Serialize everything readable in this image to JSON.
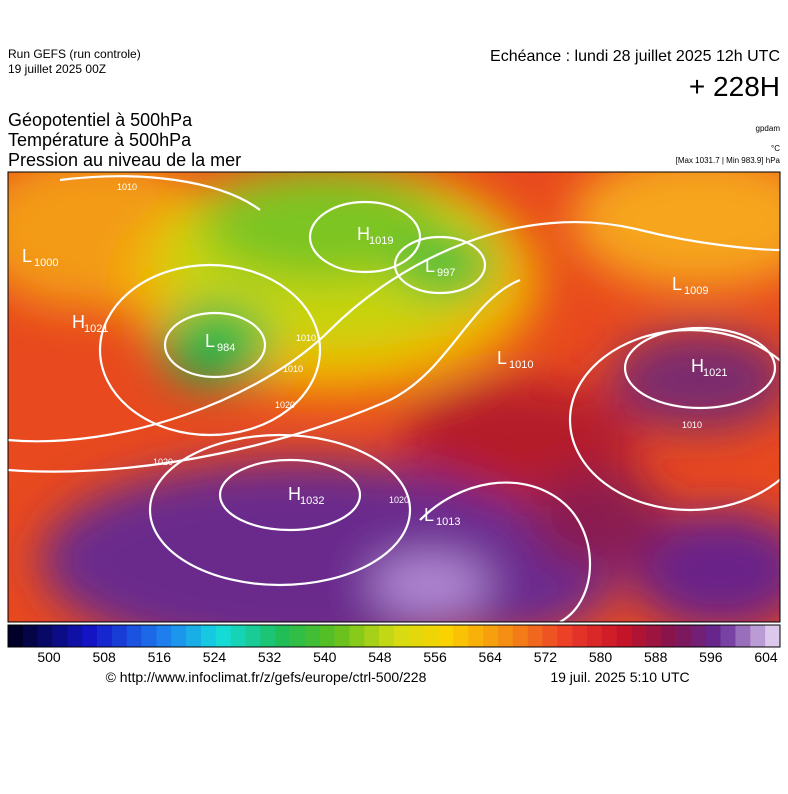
{
  "header": {
    "run": "Run GEFS (run controle)",
    "run_date": "19 juillet 2025 00Z",
    "valid": "Echéance : lundi 28 juillet 2025 12h UTC",
    "lead": "+ 228H",
    "titles": [
      "Géopotentiel à 500hPa",
      "Température à 500hPa",
      "Pression au niveau de la mer"
    ],
    "units_geopotential": "gpdam",
    "units_temperature": "°C",
    "extremes": "[Max 1031.7 | Min 983.9] hPa"
  },
  "map": {
    "centers": [
      {
        "type": "H",
        "pressure": 1019
      },
      {
        "type": "L",
        "pressure": 997
      },
      {
        "type": "L",
        "pressure": 1000
      },
      {
        "type": "H",
        "pressure": 1021
      },
      {
        "type": "L",
        "pressure": 984
      },
      {
        "type": "L",
        "pressure": 1009
      },
      {
        "type": "H",
        "pressure": 1021
      },
      {
        "type": "L",
        "pressure": 1010
      },
      {
        "type": "H",
        "pressure": 1032
      },
      {
        "type": "L",
        "pressure": 1013
      }
    ],
    "isobar_labels": [
      1010,
      1010,
      1010,
      1020,
      1020,
      1020,
      1010
    ]
  },
  "colorbar": {
    "ticks": [
      500,
      508,
      516,
      524,
      532,
      540,
      548,
      556,
      564,
      572,
      580,
      588,
      596,
      604
    ]
  },
  "footer": {
    "url": "© http://www.infoclimat.fr/z/gefs/europe/ctrl-500/228",
    "issued": "19 juil. 2025  5:10 UTC"
  }
}
